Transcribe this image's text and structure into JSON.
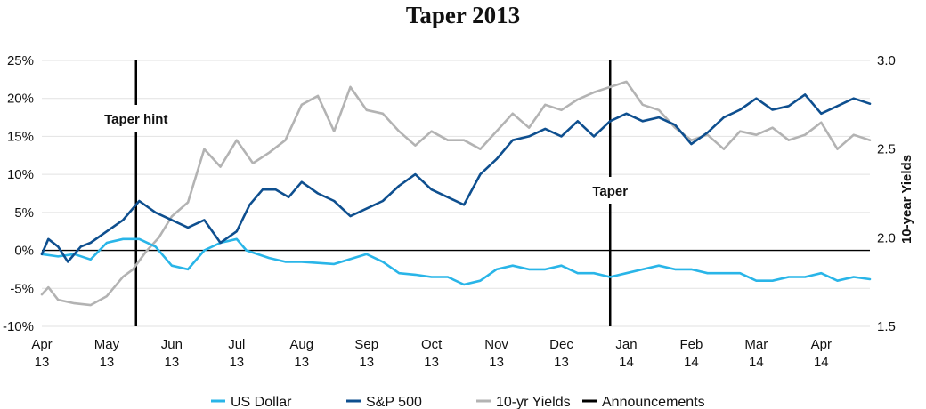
{
  "chart_data": {
    "type": "line",
    "title": "Taper 2013",
    "xlabel": "",
    "ylabel": "",
    "y2label": "10-year Yields",
    "ylim": [
      -10,
      25
    ],
    "y2lim": [
      1.5,
      3.0
    ],
    "x_ticks": [
      {
        "month": "Apr",
        "year": "13"
      },
      {
        "month": "May",
        "year": "13"
      },
      {
        "month": "Jun",
        "year": "13"
      },
      {
        "month": "Jul",
        "year": "13"
      },
      {
        "month": "Aug",
        "year": "13"
      },
      {
        "month": "Sep",
        "year": "13"
      },
      {
        "month": "Oct",
        "year": "13"
      },
      {
        "month": "Nov",
        "year": "13"
      },
      {
        "month": "Dec",
        "year": "13"
      },
      {
        "month": "Jan",
        "year": "14"
      },
      {
        "month": "Feb",
        "year": "14"
      },
      {
        "month": "Mar",
        "year": "14"
      },
      {
        "month": "Apr",
        "year": "14"
      }
    ],
    "y_ticks": [
      "25%",
      "20%",
      "15%",
      "10%",
      "5%",
      "0%",
      "-5%",
      "-10%"
    ],
    "y_tick_values": [
      25,
      20,
      15,
      10,
      5,
      0,
      -5,
      -10
    ],
    "y2_ticks": [
      "3.0",
      "2.5",
      "2.0",
      "1.5"
    ],
    "y2_tick_values": [
      3.0,
      2.5,
      2.0,
      1.5
    ],
    "x_unit": "months since Apr 2013",
    "x_range": [
      0,
      12.75
    ],
    "series": [
      {
        "name": "US Dollar",
        "axis": "left",
        "color": "#29b5e8",
        "points": [
          [
            0,
            -0.5
          ],
          [
            0.25,
            -0.8
          ],
          [
            0.5,
            -0.5
          ],
          [
            0.75,
            -1.2
          ],
          [
            1.0,
            1.0
          ],
          [
            1.25,
            1.5
          ],
          [
            1.5,
            1.5
          ],
          [
            1.75,
            0.5
          ],
          [
            2.0,
            -2.0
          ],
          [
            2.25,
            -2.5
          ],
          [
            2.5,
            0.0
          ],
          [
            2.75,
            1.0
          ],
          [
            3.0,
            1.5
          ],
          [
            3.15,
            0.0
          ],
          [
            3.5,
            -1.0
          ],
          [
            3.75,
            -1.5
          ],
          [
            4.0,
            -1.5
          ],
          [
            4.5,
            -1.8
          ],
          [
            5.0,
            -0.5
          ],
          [
            5.25,
            -1.5
          ],
          [
            5.5,
            -3.0
          ],
          [
            5.75,
            -3.2
          ],
          [
            6.0,
            -3.5
          ],
          [
            6.25,
            -3.5
          ],
          [
            6.5,
            -4.5
          ],
          [
            6.75,
            -4.0
          ],
          [
            7.0,
            -2.5
          ],
          [
            7.25,
            -2.0
          ],
          [
            7.5,
            -2.5
          ],
          [
            7.75,
            -2.5
          ],
          [
            8.0,
            -2.0
          ],
          [
            8.25,
            -3.0
          ],
          [
            8.5,
            -3.0
          ],
          [
            8.75,
            -3.5
          ],
          [
            9.0,
            -3.0
          ],
          [
            9.25,
            -2.5
          ],
          [
            9.5,
            -2.0
          ],
          [
            9.75,
            -2.5
          ],
          [
            10.0,
            -2.5
          ],
          [
            10.25,
            -3.0
          ],
          [
            10.5,
            -3.0
          ],
          [
            10.75,
            -3.0
          ],
          [
            11.0,
            -4.0
          ],
          [
            11.25,
            -4.0
          ],
          [
            11.5,
            -3.5
          ],
          [
            11.75,
            -3.5
          ],
          [
            12.0,
            -3.0
          ],
          [
            12.25,
            -4.0
          ],
          [
            12.5,
            -3.5
          ],
          [
            12.75,
            -3.8
          ]
        ]
      },
      {
        "name": "S&P 500",
        "axis": "left",
        "color": "#0e4f8f",
        "points": [
          [
            0,
            -0.5
          ],
          [
            0.1,
            1.5
          ],
          [
            0.25,
            0.5
          ],
          [
            0.4,
            -1.5
          ],
          [
            0.6,
            0.5
          ],
          [
            0.75,
            1.0
          ],
          [
            1.0,
            2.5
          ],
          [
            1.25,
            4.0
          ],
          [
            1.5,
            6.5
          ],
          [
            1.75,
            5.0
          ],
          [
            2.0,
            4.0
          ],
          [
            2.25,
            3.0
          ],
          [
            2.5,
            4.0
          ],
          [
            2.75,
            1.0
          ],
          [
            3.0,
            2.5
          ],
          [
            3.2,
            6.0
          ],
          [
            3.4,
            8.0
          ],
          [
            3.6,
            8.0
          ],
          [
            3.8,
            7.0
          ],
          [
            4.0,
            9.0
          ],
          [
            4.25,
            7.5
          ],
          [
            4.5,
            6.5
          ],
          [
            4.75,
            4.5
          ],
          [
            5.0,
            5.5
          ],
          [
            5.25,
            6.5
          ],
          [
            5.5,
            8.5
          ],
          [
            5.75,
            10.0
          ],
          [
            6.0,
            8.0
          ],
          [
            6.25,
            7.0
          ],
          [
            6.5,
            6.0
          ],
          [
            6.75,
            10.0
          ],
          [
            7.0,
            12.0
          ],
          [
            7.25,
            14.5
          ],
          [
            7.5,
            15.0
          ],
          [
            7.75,
            16.0
          ],
          [
            8.0,
            15.0
          ],
          [
            8.25,
            17.0
          ],
          [
            8.5,
            15.0
          ],
          [
            8.75,
            17.0
          ],
          [
            9.0,
            18.0
          ],
          [
            9.25,
            17.0
          ],
          [
            9.5,
            17.5
          ],
          [
            9.75,
            16.5
          ],
          [
            10.0,
            14.0
          ],
          [
            10.25,
            15.5
          ],
          [
            10.5,
            17.5
          ],
          [
            10.75,
            18.5
          ],
          [
            11.0,
            20.0
          ],
          [
            11.25,
            18.5
          ],
          [
            11.5,
            19.0
          ],
          [
            11.75,
            20.5
          ],
          [
            12.0,
            18.0
          ],
          [
            12.25,
            19.0
          ],
          [
            12.5,
            20.0
          ],
          [
            12.75,
            19.3
          ]
        ]
      },
      {
        "name": "10-yr Yields",
        "axis": "right",
        "color": "#b3b3b3",
        "points": [
          [
            0,
            1.68
          ],
          [
            0.1,
            1.72
          ],
          [
            0.25,
            1.65
          ],
          [
            0.5,
            1.63
          ],
          [
            0.75,
            1.62
          ],
          [
            1.0,
            1.67
          ],
          [
            1.25,
            1.78
          ],
          [
            1.4,
            1.82
          ],
          [
            1.6,
            1.92
          ],
          [
            1.8,
            2.0
          ],
          [
            2.0,
            2.12
          ],
          [
            2.25,
            2.2
          ],
          [
            2.5,
            2.5
          ],
          [
            2.75,
            2.4
          ],
          [
            3.0,
            2.55
          ],
          [
            3.25,
            2.42
          ],
          [
            3.5,
            2.48
          ],
          [
            3.75,
            2.55
          ],
          [
            4.0,
            2.75
          ],
          [
            4.25,
            2.8
          ],
          [
            4.5,
            2.6
          ],
          [
            4.75,
            2.85
          ],
          [
            5.0,
            2.72
          ],
          [
            5.25,
            2.7
          ],
          [
            5.5,
            2.6
          ],
          [
            5.75,
            2.52
          ],
          [
            6.0,
            2.6
          ],
          [
            6.25,
            2.55
          ],
          [
            6.5,
            2.55
          ],
          [
            6.75,
            2.5
          ],
          [
            7.0,
            2.6
          ],
          [
            7.25,
            2.7
          ],
          [
            7.5,
            2.62
          ],
          [
            7.75,
            2.75
          ],
          [
            8.0,
            2.72
          ],
          [
            8.25,
            2.78
          ],
          [
            8.5,
            2.82
          ],
          [
            8.75,
            2.85
          ],
          [
            9.0,
            2.88
          ],
          [
            9.25,
            2.75
          ],
          [
            9.5,
            2.72
          ],
          [
            9.75,
            2.62
          ],
          [
            10.0,
            2.55
          ],
          [
            10.25,
            2.58
          ],
          [
            10.5,
            2.5
          ],
          [
            10.75,
            2.6
          ],
          [
            11.0,
            2.58
          ],
          [
            11.25,
            2.62
          ],
          [
            11.5,
            2.55
          ],
          [
            11.75,
            2.58
          ],
          [
            12.0,
            2.65
          ],
          [
            12.25,
            2.5
          ],
          [
            12.5,
            2.58
          ],
          [
            12.75,
            2.55
          ]
        ]
      }
    ],
    "announcements": [
      {
        "label": "Taper hint",
        "x": 1.45
      },
      {
        "label": "Taper",
        "x": 8.75
      }
    ],
    "zero_line": 0,
    "legend_position": "bottom",
    "legend": [
      {
        "label": "US Dollar",
        "color": "#29b5e8"
      },
      {
        "label": "S&P 500",
        "color": "#0e4f8f"
      },
      {
        "label": "10-yr Yields",
        "color": "#b3b3b3"
      },
      {
        "label": "Announcements",
        "color": "#000000"
      }
    ]
  }
}
